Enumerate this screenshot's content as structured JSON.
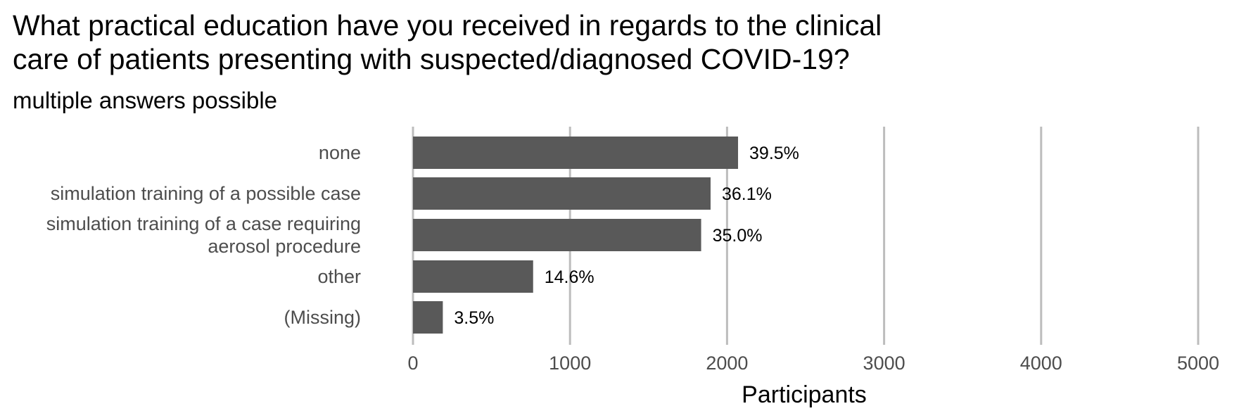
{
  "chart_data": {
    "type": "bar",
    "orientation": "horizontal",
    "title": [
      "What practical education have you received in regards to the clinical",
      "care of patients presenting with suspected/diagnosed COVID-19?"
    ],
    "subtitle": "multiple answers possible",
    "xlabel": "Participants",
    "xlim": [
      0,
      5000
    ],
    "xticks": [
      "0",
      "1000",
      "2000",
      "3000",
      "4000",
      "5000"
    ],
    "grid": true,
    "categories": [
      [
        "none"
      ],
      [
        "simulation training of a possible case"
      ],
      [
        "simulation training of a case requiring",
        "aerosol procedure"
      ],
      [
        "other"
      ],
      [
        "(Missing)"
      ]
    ],
    "values": [
      2070,
      1895,
      1835,
      765,
      190
    ],
    "labels": [
      "39.5%",
      "36.1%",
      "35.0%",
      "14.6%",
      "3.5%"
    ],
    "colors": {
      "bar": "#595959",
      "grid": "#bdbdbd"
    }
  }
}
